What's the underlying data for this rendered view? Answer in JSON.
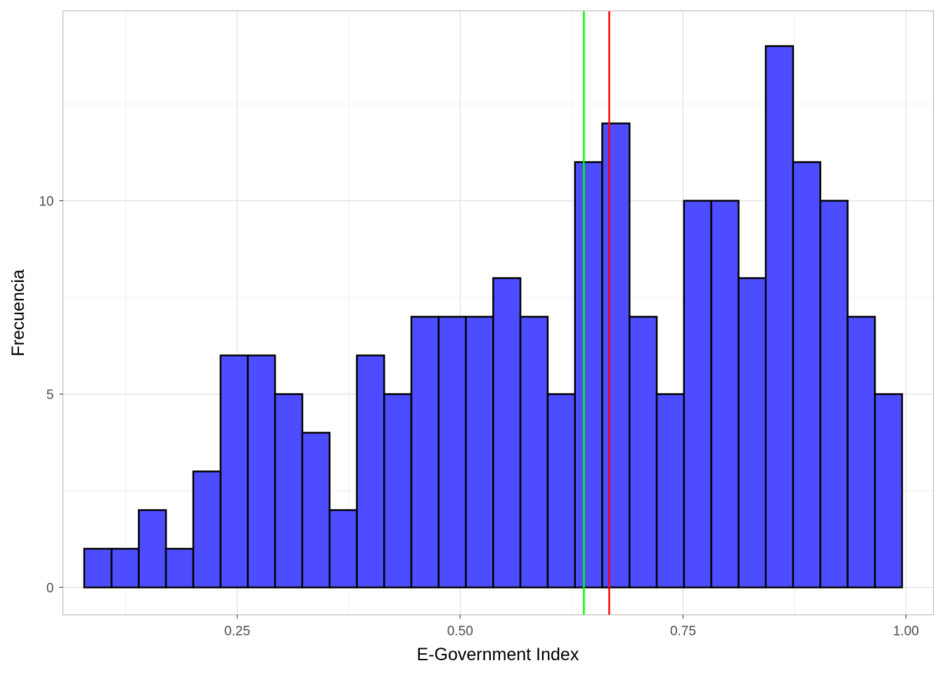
{
  "chart_data": {
    "type": "bar",
    "subtype": "histogram",
    "title": "",
    "xlabel": "E-Government Index",
    "ylabel": "Frecuencia",
    "xlim": [
      0.0545,
      1.0308
    ],
    "ylim": [
      -0.71,
      14.91
    ],
    "x_ticks": [
      0.25,
      0.5,
      0.75,
      1.0
    ],
    "x_tick_labels": [
      "0.25",
      "0.50",
      "0.75",
      "1.00"
    ],
    "y_ticks": [
      0,
      5,
      10
    ],
    "y_tick_labels": [
      "0",
      "5",
      "10"
    ],
    "grid": true,
    "legend": "none",
    "bin_edges": [
      0.0784,
      0.109,
      0.1396,
      0.1701,
      0.2007,
      0.2313,
      0.2619,
      0.2924,
      0.323,
      0.3536,
      0.3842,
      0.4148,
      0.4453,
      0.4759,
      0.5065,
      0.5371,
      0.5676,
      0.5982,
      0.6288,
      0.6594,
      0.69,
      0.7205,
      0.7511,
      0.7817,
      0.8123,
      0.8428,
      0.8734,
      0.904,
      0.9346,
      0.9652,
      0.9957
    ],
    "values": [
      1,
      1,
      2,
      1,
      3,
      6,
      6,
      5,
      4,
      2,
      6,
      5,
      7,
      7,
      7,
      8,
      7,
      5,
      11,
      12,
      7,
      5,
      10,
      10,
      8,
      14,
      11,
      10,
      7,
      5
    ],
    "vlines": [
      {
        "x": 0.6388,
        "color": "#00ff00"
      },
      {
        "x": 0.6672,
        "color": "#ff0000"
      }
    ],
    "colors": {
      "bar_fill": "#4d4dff",
      "bar_stroke": "#000000",
      "grid_major": "#dedede",
      "grid_minor": "#efefef",
      "panel_border": "#b3b3b3"
    }
  }
}
